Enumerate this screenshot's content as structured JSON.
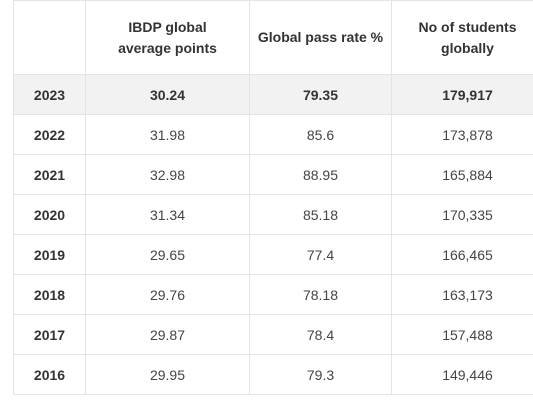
{
  "table": {
    "headers": [
      "",
      "IBDP global average points",
      "Global pass rate %",
      "No of students globally"
    ],
    "rows": [
      {
        "year": "2023",
        "avg_points": "30.24",
        "pass_rate": "79.35",
        "students": "179,917"
      },
      {
        "year": "2022",
        "avg_points": "31.98",
        "pass_rate": "85.6",
        "students": "173,878"
      },
      {
        "year": "2021",
        "avg_points": "32.98",
        "pass_rate": "88.95",
        "students": "165,884"
      },
      {
        "year": "2020",
        "avg_points": "31.34",
        "pass_rate": "85.18",
        "students": "170,335"
      },
      {
        "year": "2019",
        "avg_points": "29.65",
        "pass_rate": "77.4",
        "students": "166,465"
      },
      {
        "year": "2018",
        "avg_points": "29.76",
        "pass_rate": "78.18",
        "students": "163,173"
      },
      {
        "year": "2017",
        "avg_points": "29.87",
        "pass_rate": "78.4",
        "students": "157,488"
      },
      {
        "year": "2016",
        "avg_points": "29.95",
        "pass_rate": "79.3",
        "students": "149,446"
      }
    ]
  },
  "colors": {
    "header_text": "#333333",
    "highlight_row_bg": "#f2f2f2",
    "border": "#e4e4e4"
  }
}
